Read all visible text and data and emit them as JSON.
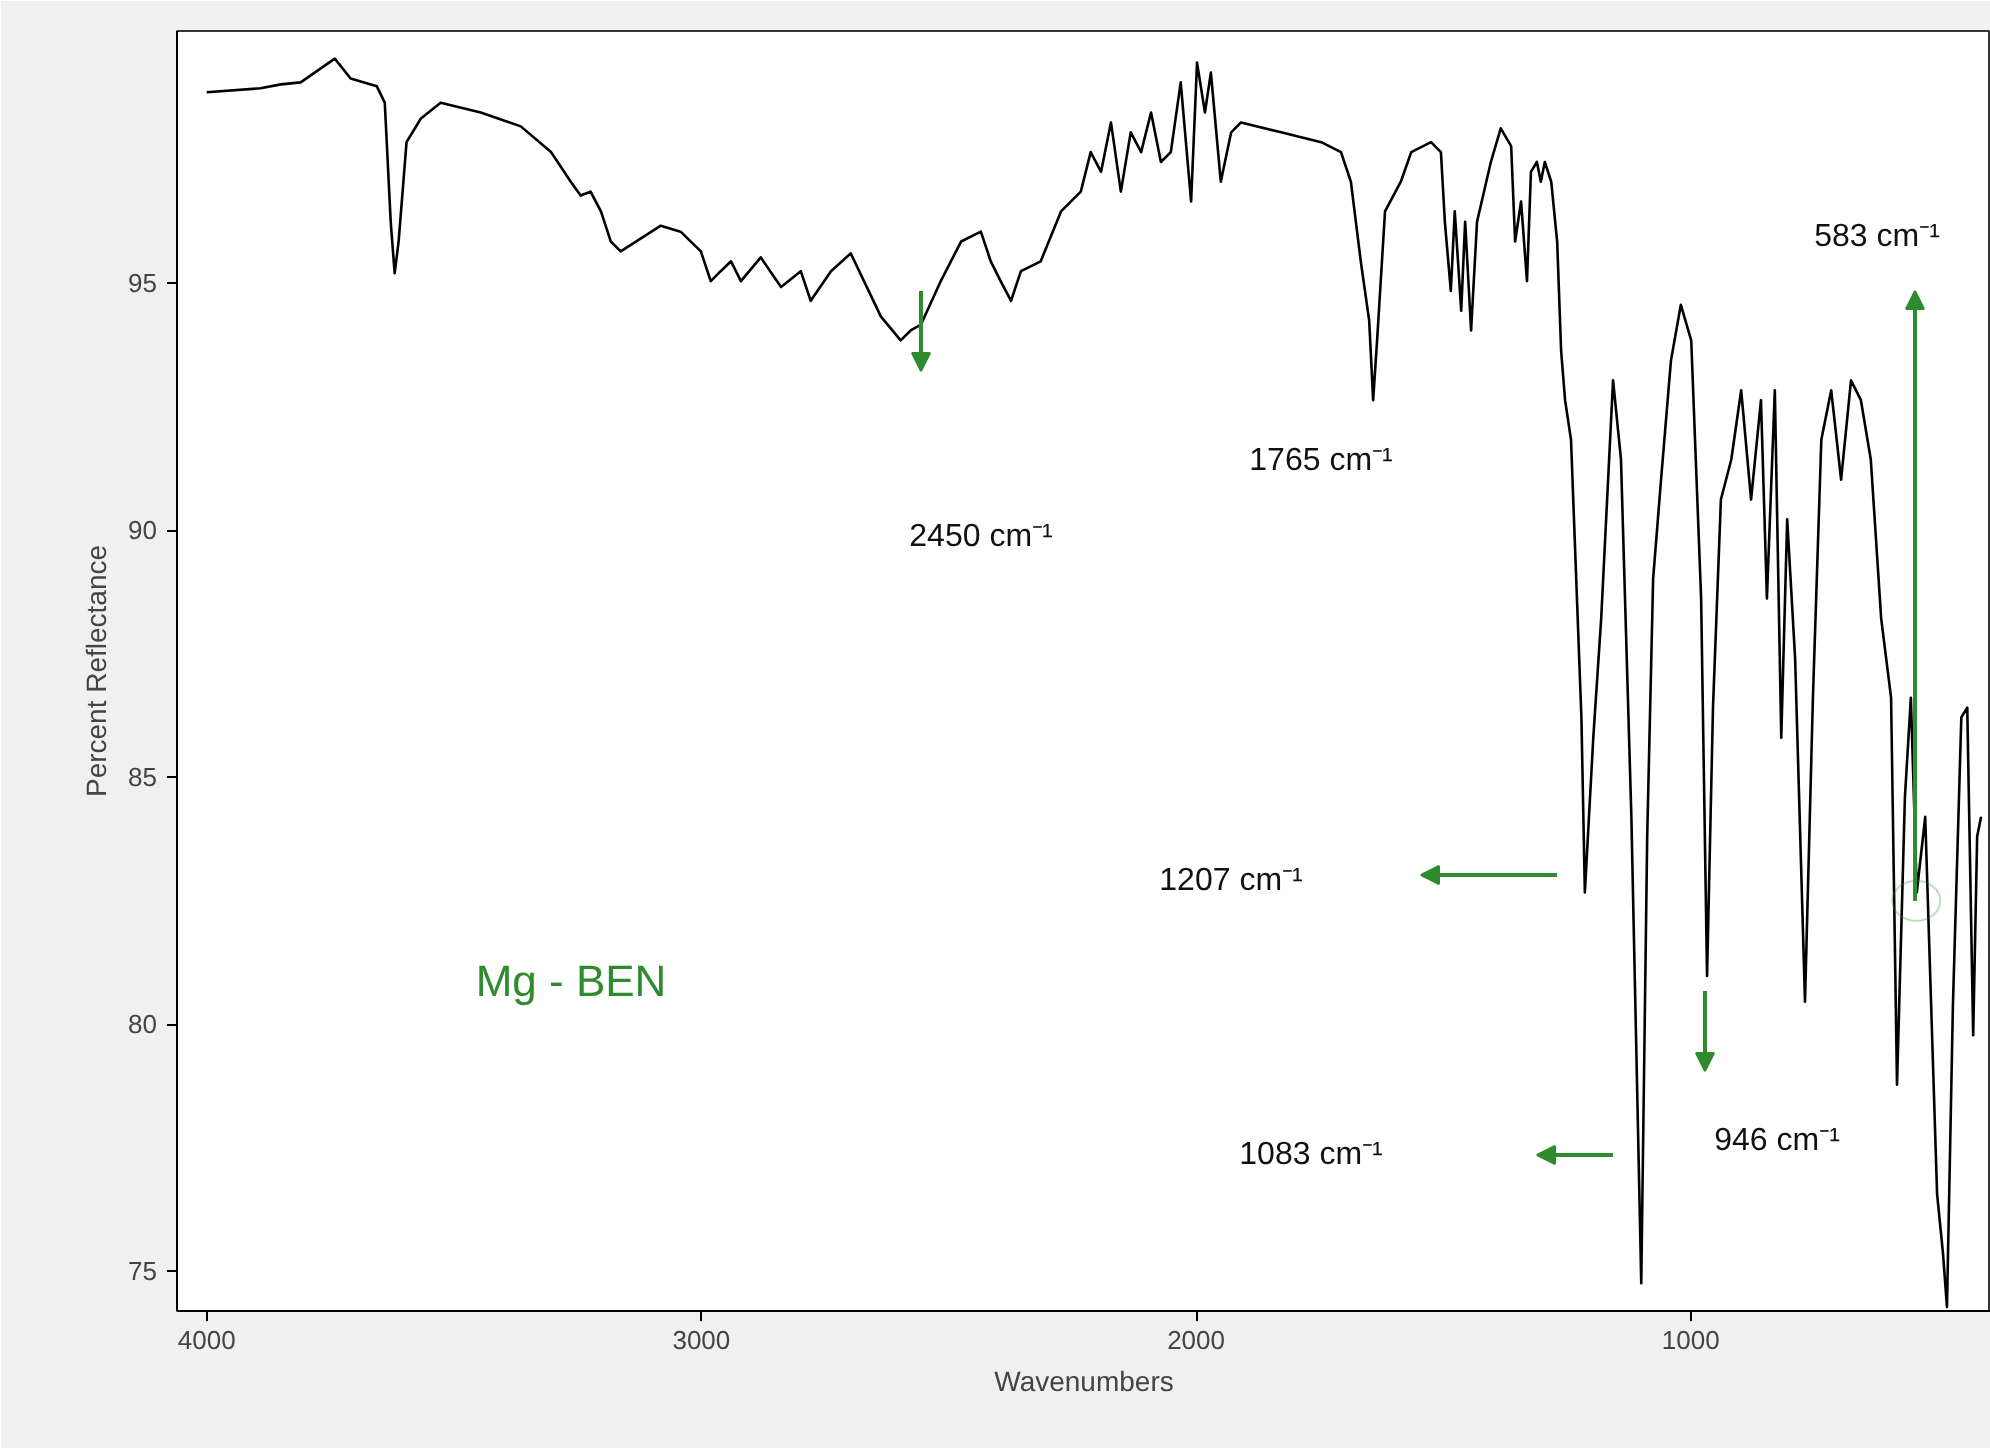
{
  "chart_data": {
    "type": "line",
    "xlabel": "Wavenumbers",
    "ylabel": "Percent Reflectance",
    "xlim": [
      4060,
      393
    ],
    "ylim": [
      74.2,
      100.1
    ],
    "xticks": [
      4000,
      3000,
      2000,
      1000
    ],
    "yticks": [
      75,
      80,
      85,
      90,
      95
    ],
    "grid": false,
    "marker": "none",
    "line_style": "solid",
    "series": [
      {
        "color": "#000000",
        "x": [
          4000,
          3891,
          3850,
          3810,
          3741,
          3709,
          3656,
          3640,
          3628,
          3620,
          3612,
          3596,
          3567,
          3527,
          3446,
          3365,
          3304,
          3264,
          3244,
          3224,
          3203,
          3183,
          3163,
          3082,
          3042,
          3001,
          2981,
          2961,
          2940,
          2920,
          2880,
          2839,
          2799,
          2779,
          2738,
          2698,
          2637,
          2597,
          2577,
          2556,
          2516,
          2475,
          2435,
          2415,
          2395,
          2374,
          2354,
          2314,
          2273,
          2233,
          2213,
          2192,
          2172,
          2152,
          2132,
          2111,
          2091,
          2071,
          2051,
          2031,
          2010,
          1998,
          1982,
          1970,
          1950,
          1929,
          1909,
          1828,
          1747,
          1707,
          1687,
          1667,
          1650,
          1642,
          1634,
          1618,
          1586,
          1565,
          1525,
          1505,
          1497,
          1485,
          1477,
          1464,
          1456,
          1444,
          1432,
          1404,
          1384,
          1363,
          1355,
          1343,
          1331,
          1323,
          1311,
          1303,
          1295,
          1282,
          1270,
          1262,
          1254,
          1242,
          1230,
          1221,
          1214,
          1197,
          1181,
          1157,
          1141,
          1120,
          1100,
          1088,
          1076,
          1060,
          1040,
          1020,
          999,
          979,
          967,
          955,
          939,
          918,
          898,
          878,
          858,
          846,
          830,
          817,
          805,
          789,
          769,
          753,
          736,
          716,
          696,
          676,
          656,
          636,
          615,
          595,
          583,
          567,
          555,
          543,
          526,
          514,
          502,
          490,
          482,
          470,
          453,
          441,
          429,
          421,
          413
        ],
        "values": [
          98.86,
          98.94,
          99.02,
          99.06,
          99.54,
          99.14,
          98.98,
          98.65,
          96.24,
          95.2,
          95.84,
          97.85,
          98.33,
          98.65,
          98.45,
          98.17,
          97.65,
          97.05,
          96.77,
          96.85,
          96.45,
          95.84,
          95.64,
          96.16,
          96.04,
          95.64,
          95.04,
          95.24,
          95.44,
          95.04,
          95.52,
          94.92,
          95.24,
          94.64,
          95.24,
          95.6,
          94.32,
          93.84,
          94.04,
          94.16,
          95.04,
          95.84,
          96.04,
          95.44,
          95.04,
          94.64,
          95.24,
          95.44,
          96.45,
          96.85,
          97.65,
          97.25,
          98.25,
          96.85,
          98.05,
          97.65,
          98.45,
          97.45,
          97.65,
          99.06,
          96.65,
          99.46,
          98.45,
          99.26,
          97.05,
          98.05,
          98.25,
          98.05,
          97.85,
          97.65,
          97.05,
          95.44,
          94.24,
          92.63,
          93.84,
          96.45,
          97.05,
          97.65,
          97.85,
          97.65,
          96.24,
          94.84,
          96.45,
          94.44,
          96.24,
          94.04,
          96.24,
          97.45,
          98.13,
          97.77,
          95.84,
          96.65,
          95.04,
          97.25,
          97.45,
          97.05,
          97.45,
          97.05,
          95.84,
          93.63,
          92.63,
          91.83,
          88.62,
          86.21,
          82.67,
          85.8,
          88.21,
          93.03,
          91.43,
          84.2,
          74.76,
          83.8,
          89.02,
          91.02,
          93.43,
          94.56,
          93.84,
          88.62,
          80.98,
          86.41,
          90.62,
          91.43,
          92.83,
          90.62,
          92.63,
          88.62,
          92.83,
          85.8,
          90.22,
          87.41,
          80.46,
          86.61,
          91.83,
          92.83,
          91.02,
          93.03,
          92.63,
          91.43,
          88.21,
          86.61,
          78.78,
          84.6,
          86.61,
          82.67,
          84.2,
          80.38,
          76.57,
          75.36,
          74.28,
          80.38,
          86.21,
          86.41,
          79.78,
          83.8,
          84.2
        ]
      }
    ],
    "annotations": [
      "2450 cm⁻¹",
      "1765 cm⁻¹",
      "1207 cm⁻¹",
      "1083 cm⁻¹",
      "946 cm⁻¹",
      {
        "text": "583 cm⁻¹",
        "x": 544,
        "y": 82.5
      },
      "Mg - BEN"
    ]
  }
}
